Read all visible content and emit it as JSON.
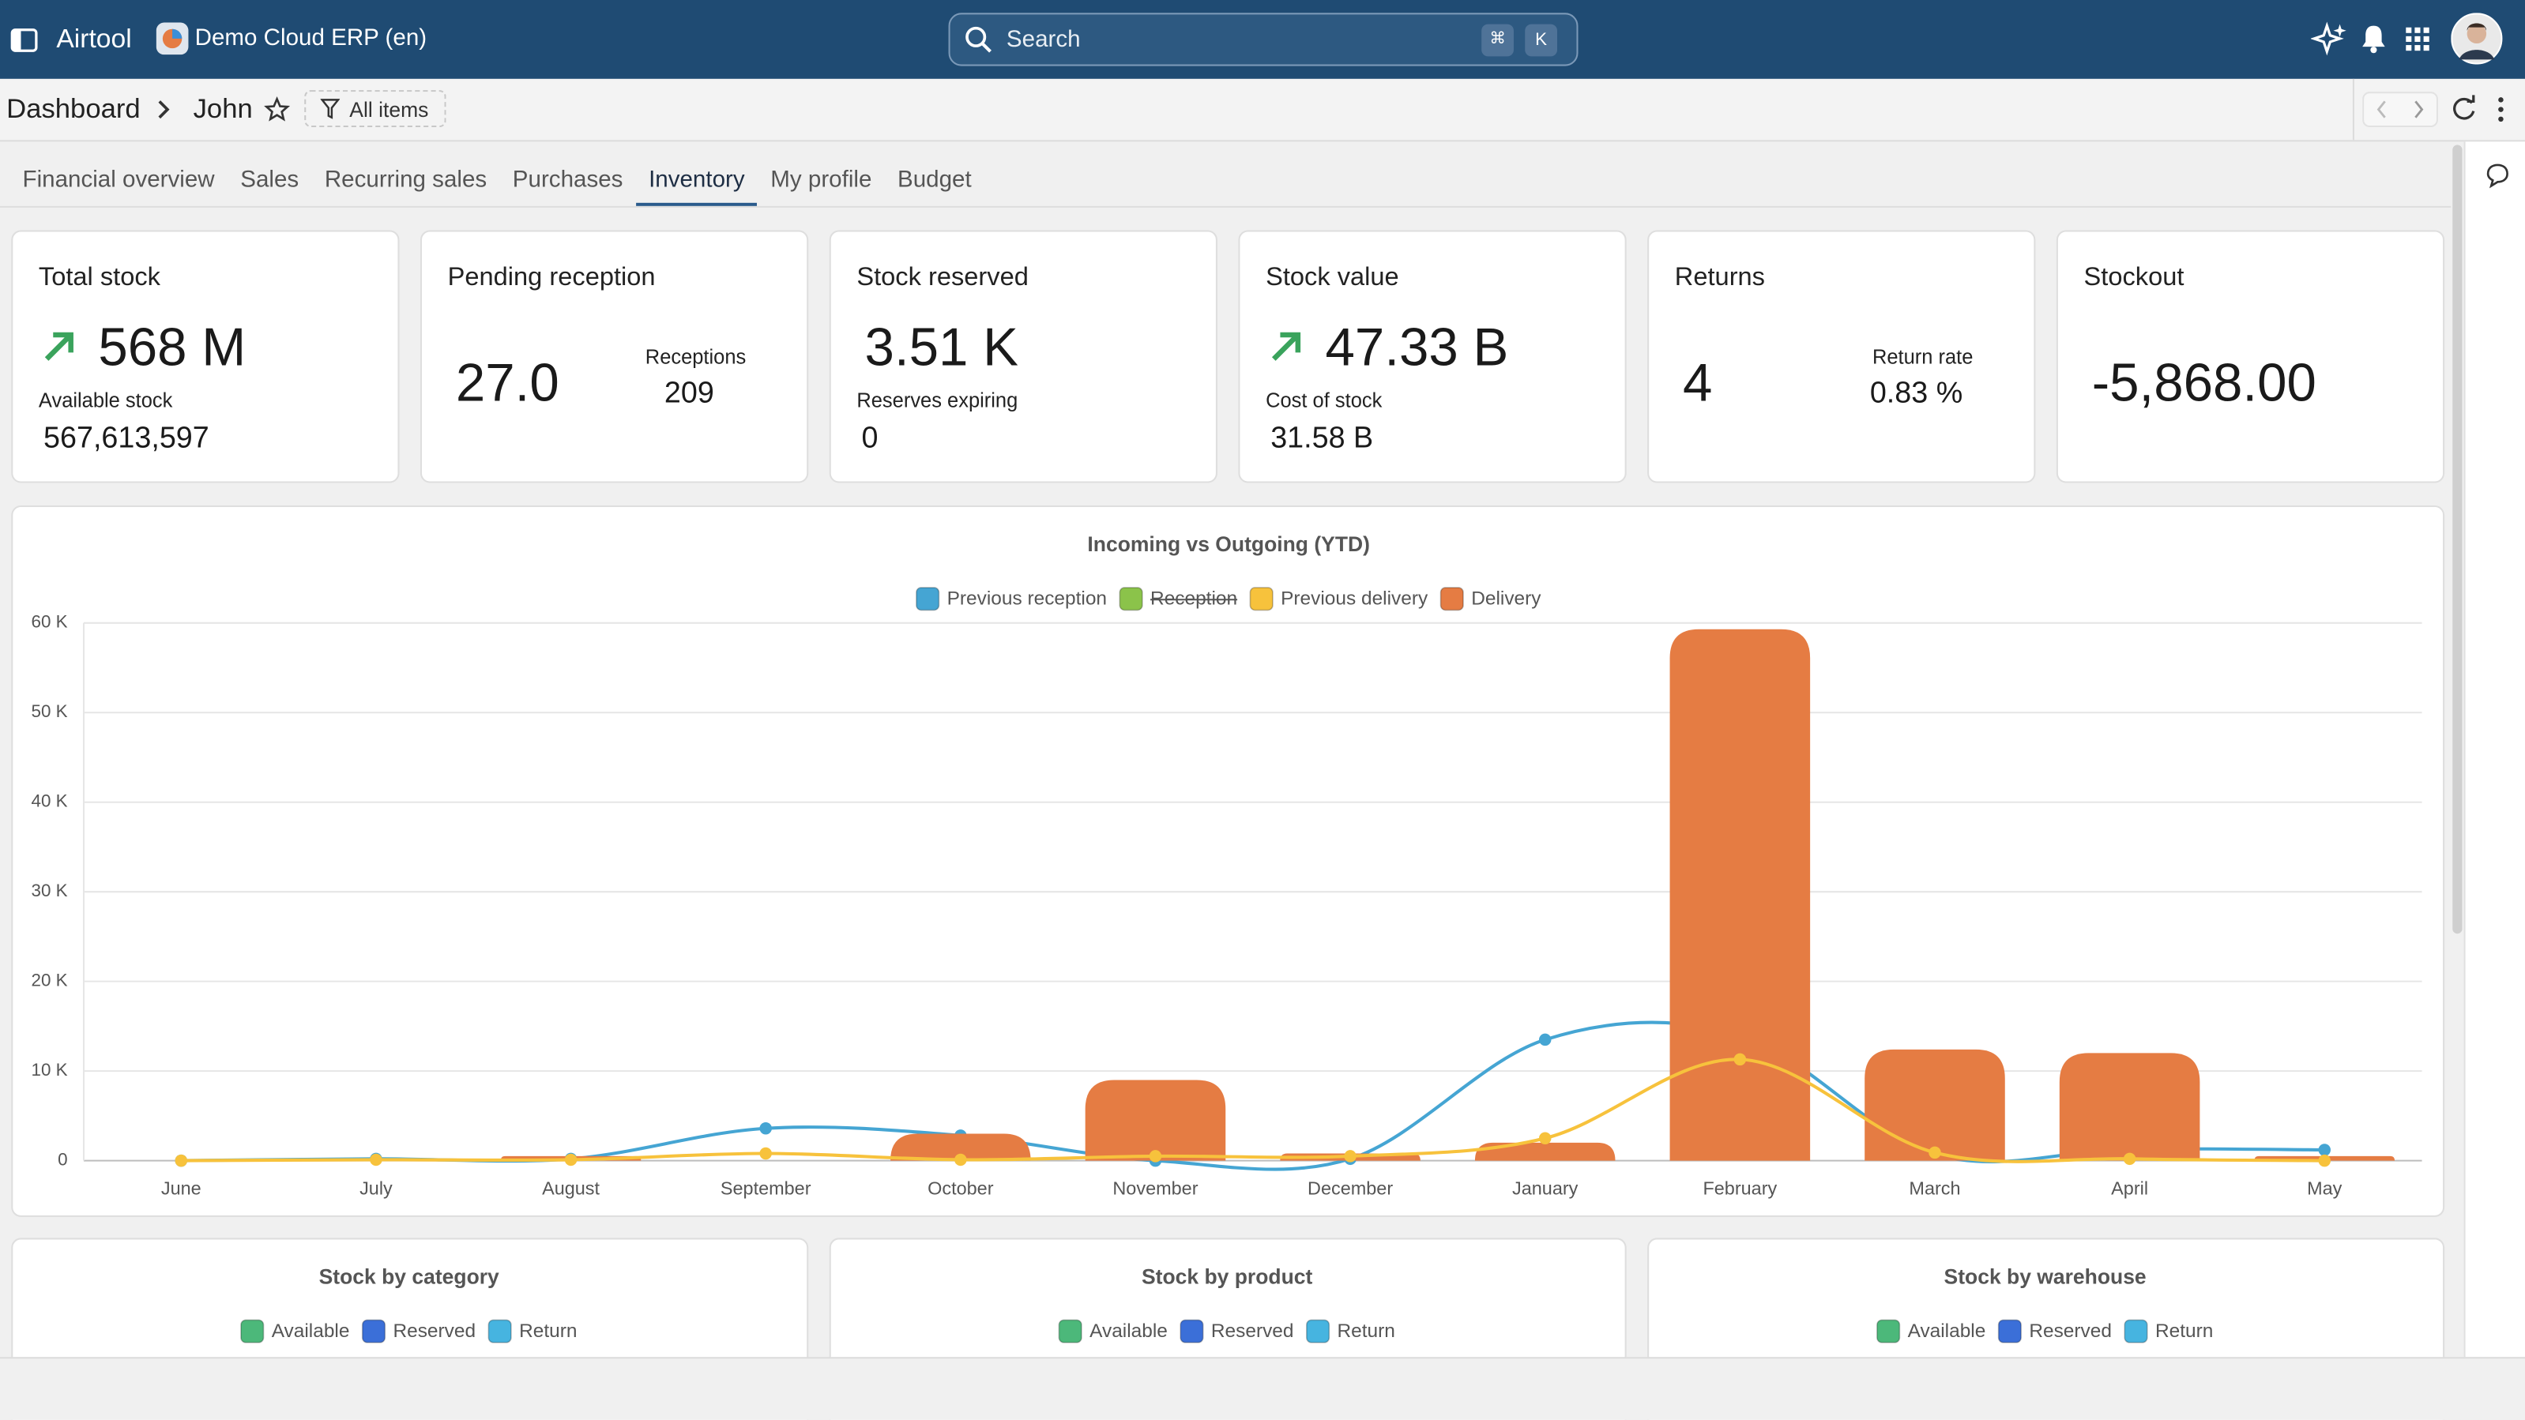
{
  "header": {
    "app_name": "Airtool",
    "workspace": "Demo Cloud ERP (en)",
    "search_placeholder": "Search",
    "search_keys": [
      "⌘",
      "K"
    ]
  },
  "breadcrumb": {
    "items": [
      "Dashboard",
      "John"
    ],
    "filter": "All items"
  },
  "tabs": {
    "items": [
      "Financial overview",
      "Sales",
      "Recurring sales",
      "Purchases",
      "Inventory",
      "My profile",
      "Budget"
    ],
    "active": 4
  },
  "kpi_cards": [
    {
      "title": "Total stock",
      "value": "568 M",
      "trend": "up",
      "sub_label": "Available stock",
      "sub_value": "567,613,597"
    },
    {
      "title": "Pending reception",
      "value": "27.0",
      "side_label": "Receptions",
      "side_value": "209"
    },
    {
      "title": "Stock reserved",
      "value": "3.51 K",
      "sub_label": "Reserves expiring",
      "sub_value": "0"
    },
    {
      "title": "Stock value",
      "value": "47.33 B",
      "trend": "up",
      "sub_label": "Cost of stock",
      "sub_value": "31.58 B"
    },
    {
      "title": "Returns",
      "value": "4",
      "side_label": "Return rate",
      "side_value": "0.83 %"
    },
    {
      "title": "Stockout",
      "value": "-5,868.00"
    }
  ],
  "chart_data": {
    "type": "bar",
    "title": "Incoming vs Outgoing (YTD)",
    "categories": [
      "June",
      "July",
      "August",
      "September",
      "October",
      "November",
      "December",
      "January",
      "February",
      "March",
      "April",
      "May"
    ],
    "series": [
      {
        "name": "Previous reception",
        "type": "line",
        "color": "#45a5d3",
        "values": [
          0,
          200,
          200,
          3600,
          2800,
          0,
          200,
          13500,
          14000,
          700,
          1300,
          1200
        ]
      },
      {
        "name": "Reception",
        "type": "line",
        "color": "#8bc34a",
        "hidden": true,
        "values": [
          null,
          null,
          null,
          null,
          null,
          null,
          null,
          null,
          null,
          null,
          null,
          null
        ]
      },
      {
        "name": "Previous delivery",
        "type": "line",
        "color": "#f7c23c",
        "values": [
          0,
          100,
          100,
          800,
          100,
          500,
          500,
          2500,
          11300,
          900,
          200,
          0
        ]
      },
      {
        "name": "Delivery",
        "type": "bar",
        "color": "#e57c43",
        "values": [
          0,
          0,
          500,
          0,
          3000,
          9000,
          800,
          2000,
          59300,
          12400,
          12000,
          500
        ]
      }
    ],
    "ylim": [
      0,
      60000
    ],
    "yticks": [
      0,
      {
        "value": 10000,
        "label": "10 K"
      },
      {
        "value": 20000,
        "label": "20 K"
      },
      {
        "value": 30000,
        "label": "30 K"
      },
      {
        "value": 40000,
        "label": "40 K"
      },
      {
        "value": 50000,
        "label": "50 K"
      },
      {
        "value": 60000,
        "label": "60 K"
      }
    ],
    "grid": true
  },
  "bottom_cards": [
    {
      "title": "Stock by category",
      "legend": [
        {
          "name": "Available",
          "color": "#4cb87a"
        },
        {
          "name": "Reserved",
          "color": "#3b6fd8"
        },
        {
          "name": "Return",
          "color": "#46b4e0"
        }
      ]
    },
    {
      "title": "Stock by product",
      "legend": [
        {
          "name": "Available",
          "color": "#4cb87a"
        },
        {
          "name": "Reserved",
          "color": "#3b6fd8"
        },
        {
          "name": "Return",
          "color": "#46b4e0"
        }
      ]
    },
    {
      "title": "Stock by warehouse",
      "legend": [
        {
          "name": "Available",
          "color": "#4cb87a"
        },
        {
          "name": "Reserved",
          "color": "#3b6fd8"
        },
        {
          "name": "Return",
          "color": "#46b4e0"
        }
      ]
    }
  ]
}
